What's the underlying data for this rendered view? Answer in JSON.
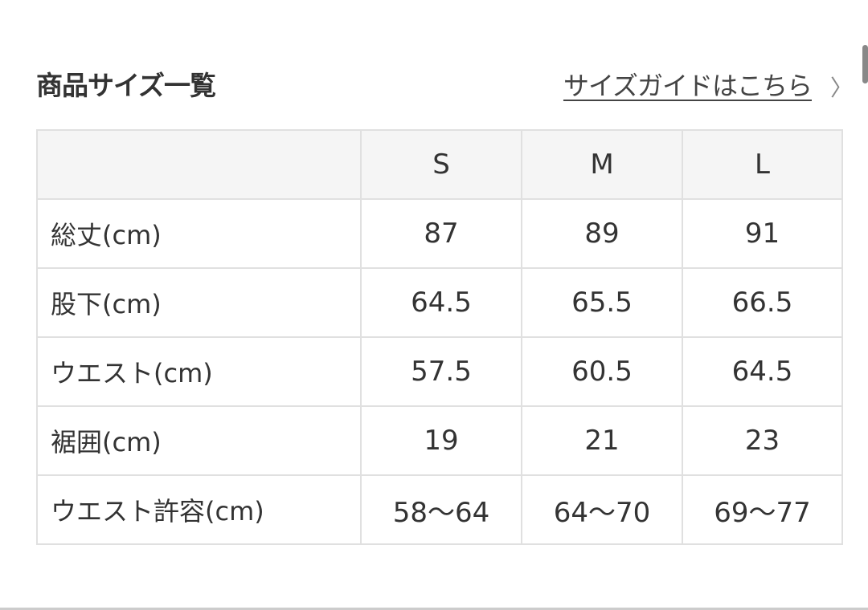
{
  "header": {
    "title": "商品サイズ一覧",
    "guide_link": "サイズガイドはこちら",
    "guide_icon": "chevron-right-icon"
  },
  "table": {
    "columns": [
      "",
      "S",
      "M",
      "L"
    ],
    "rows": [
      {
        "label": "総丈(cm)",
        "values": [
          "87",
          "89",
          "91"
        ]
      },
      {
        "label": "股下(cm)",
        "values": [
          "64.5",
          "65.5",
          "66.5"
        ]
      },
      {
        "label": "ウエスト(cm)",
        "values": [
          "57.5",
          "60.5",
          "64.5"
        ]
      },
      {
        "label": "裾囲(cm)",
        "values": [
          "19",
          "21",
          "23"
        ]
      },
      {
        "label": "ウエスト許容(cm)",
        "values": [
          "58〜64",
          "64〜70",
          "69〜77"
        ]
      }
    ]
  }
}
